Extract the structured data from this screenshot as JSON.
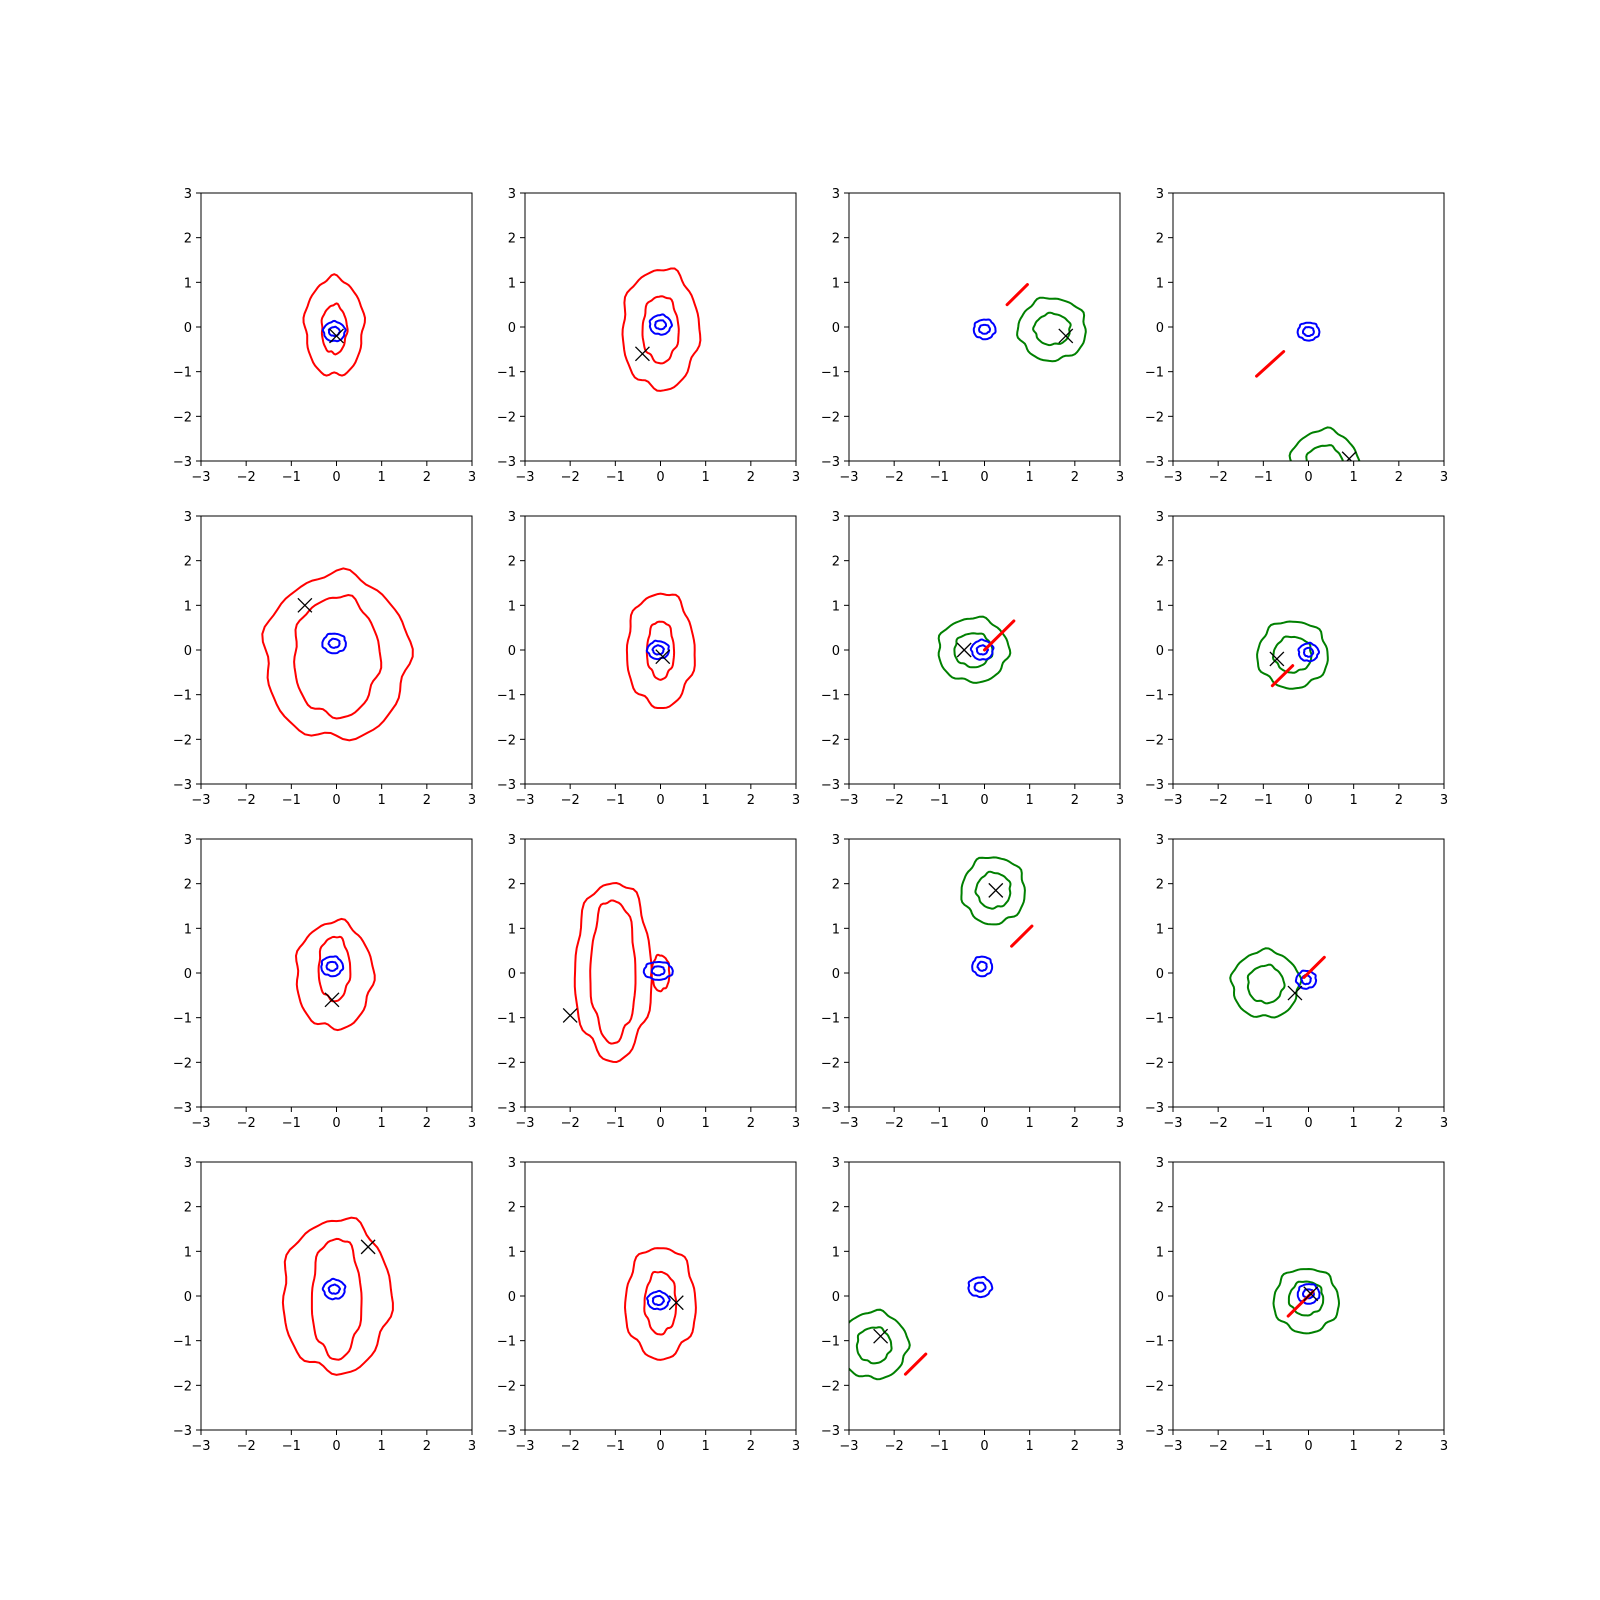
{
  "colors": {
    "background": "#ffffff",
    "axes": "#000000",
    "prior_contour": "#0000ff",
    "posterior_contour": "#ff0000",
    "extra_contour": "#008000",
    "marker": "#000000"
  },
  "chart_data": [
    {
      "type": "contour",
      "xlim": [
        -3,
        3
      ],
      "ylim": [
        -3,
        3
      ],
      "xticks": [
        -3,
        -2,
        -1,
        0,
        1,
        2,
        3
      ],
      "yticks": [
        -3,
        -2,
        -1,
        0,
        1,
        2,
        3
      ],
      "grid": false,
      "blue": {
        "cx": -0.05,
        "cy": -0.1,
        "levels": [
          {
            "rx": 0.24,
            "ry": 0.22
          },
          {
            "rx": 0.12,
            "ry": 0.1
          }
        ]
      },
      "red": [
        {
          "cx": -0.05,
          "cy": 0.0,
          "rx": 0.65,
          "ry": 1.1
        },
        {
          "cx": -0.05,
          "cy": -0.05,
          "rx": 0.28,
          "ry": 0.55
        }
      ],
      "green": [],
      "line": null,
      "marker": {
        "x": 0.0,
        "y": -0.2
      }
    },
    {
      "type": "contour",
      "xlim": [
        -3,
        3
      ],
      "ylim": [
        -3,
        3
      ],
      "xticks": [
        -3,
        -2,
        -1,
        0,
        1,
        2,
        3
      ],
      "yticks": [
        -3,
        -2,
        -1,
        0,
        1,
        2,
        3
      ],
      "grid": false,
      "blue": {
        "cx": 0.0,
        "cy": 0.05,
        "levels": [
          {
            "rx": 0.24,
            "ry": 0.22
          },
          {
            "rx": 0.12,
            "ry": 0.1
          }
        ]
      },
      "red": [
        {
          "cx": 0.0,
          "cy": -0.05,
          "rx": 0.85,
          "ry": 1.35
        },
        {
          "cx": 0.0,
          "cy": -0.05,
          "rx": 0.4,
          "ry": 0.75
        }
      ],
      "green": [],
      "line": null,
      "marker": {
        "x": -0.4,
        "y": -0.6
      }
    },
    {
      "type": "contour",
      "xlim": [
        -3,
        3
      ],
      "ylim": [
        -3,
        3
      ],
      "xticks": [
        -3,
        -2,
        -1,
        0,
        1,
        2,
        3
      ],
      "yticks": [
        -3,
        -2,
        -1,
        0,
        1,
        2,
        3
      ],
      "grid": false,
      "blue": {
        "cx": 0.0,
        "cy": -0.05,
        "levels": [
          {
            "rx": 0.24,
            "ry": 0.22
          },
          {
            "rx": 0.12,
            "ry": 0.1
          }
        ]
      },
      "red": [],
      "green": [
        {
          "cx": 1.5,
          "cy": -0.05,
          "rx": 0.75,
          "ry": 0.7
        },
        {
          "cx": 1.5,
          "cy": -0.05,
          "rx": 0.4,
          "ry": 0.35
        }
      ],
      "line": {
        "x1": 0.5,
        "y1": 0.5,
        "x2": 0.95,
        "y2": 0.95
      },
      "marker": {
        "x": 1.8,
        "y": -0.2
      }
    },
    {
      "type": "contour",
      "xlim": [
        -3,
        3
      ],
      "ylim": [
        -3,
        3
      ],
      "xticks": [
        -3,
        -2,
        -1,
        0,
        1,
        2,
        3
      ],
      "yticks": [
        -3,
        -2,
        -1,
        0,
        1,
        2,
        3
      ],
      "grid": false,
      "blue": {
        "cx": 0.0,
        "cy": -0.1,
        "levels": [
          {
            "rx": 0.24,
            "ry": 0.2
          },
          {
            "rx": 0.12,
            "ry": 0.1
          }
        ]
      },
      "red": [],
      "green": [
        {
          "cx": 0.35,
          "cy": -3.1,
          "rx": 0.75,
          "ry": 0.8
        },
        {
          "cx": 0.35,
          "cy": -3.1,
          "rx": 0.42,
          "ry": 0.45
        }
      ],
      "line": {
        "x1": -1.15,
        "y1": -1.1,
        "x2": -0.55,
        "y2": -0.55
      },
      "marker": {
        "x": 0.9,
        "y": -2.95
      }
    },
    {
      "type": "contour",
      "xlim": [
        -3,
        3
      ],
      "ylim": [
        -3,
        3
      ],
      "xticks": [
        -3,
        -2,
        -1,
        0,
        1,
        2,
        3
      ],
      "yticks": [
        -3,
        -2,
        -1,
        0,
        1,
        2,
        3
      ],
      "grid": false,
      "blue": {
        "cx": -0.05,
        "cy": 0.15,
        "levels": [
          {
            "rx": 0.26,
            "ry": 0.22
          },
          {
            "rx": 0.12,
            "ry": 0.1
          }
        ]
      },
      "red": [
        {
          "cx": 0.0,
          "cy": -0.15,
          "rx": 1.6,
          "ry": 1.85
        },
        {
          "cx": 0.0,
          "cy": -0.15,
          "rx": 0.95,
          "ry": 1.35
        }
      ],
      "green": [],
      "line": null,
      "marker": {
        "x": -0.7,
        "y": 1.0
      }
    },
    {
      "type": "contour",
      "xlim": [
        -3,
        3
      ],
      "ylim": [
        -3,
        3
      ],
      "xticks": [
        -3,
        -2,
        -1,
        0,
        1,
        2,
        3
      ],
      "yticks": [
        -3,
        -2,
        -1,
        0,
        1,
        2,
        3
      ],
      "grid": false,
      "blue": {
        "cx": -0.05,
        "cy": 0.0,
        "levels": [
          {
            "rx": 0.24,
            "ry": 0.2
          },
          {
            "rx": 0.12,
            "ry": 0.1
          }
        ]
      },
      "red": [
        {
          "cx": 0.0,
          "cy": 0.0,
          "rx": 0.75,
          "ry": 1.28
        },
        {
          "cx": 0.0,
          "cy": 0.0,
          "rx": 0.3,
          "ry": 0.65
        }
      ],
      "green": [],
      "line": null,
      "marker": {
        "x": 0.05,
        "y": -0.15
      }
    },
    {
      "type": "contour",
      "xlim": [
        -3,
        3
      ],
      "ylim": [
        -3,
        3
      ],
      "xticks": [
        -3,
        -2,
        -1,
        0,
        1,
        2,
        3
      ],
      "yticks": [
        -3,
        -2,
        -1,
        0,
        1,
        2,
        3
      ],
      "grid": false,
      "blue": {
        "cx": -0.05,
        "cy": 0.0,
        "levels": [
          {
            "rx": 0.24,
            "ry": 0.22
          },
          {
            "rx": 0.12,
            "ry": 0.1
          }
        ]
      },
      "red": [],
      "green": [
        {
          "cx": -0.25,
          "cy": 0.0,
          "rx": 0.78,
          "ry": 0.72
        },
        {
          "cx": -0.25,
          "cy": 0.0,
          "rx": 0.42,
          "ry": 0.38
        }
      ],
      "line": {
        "x1": 0.0,
        "y1": 0.0,
        "x2": 0.65,
        "y2": 0.65
      },
      "marker": {
        "x": -0.45,
        "y": 0.0
      }
    },
    {
      "type": "contour",
      "xlim": [
        -3,
        3
      ],
      "ylim": [
        -3,
        3
      ],
      "xticks": [
        -3,
        -2,
        -1,
        0,
        1,
        2,
        3
      ],
      "yticks": [
        -3,
        -2,
        -1,
        0,
        1,
        2,
        3
      ],
      "grid": false,
      "blue": {
        "cx": 0.0,
        "cy": -0.05,
        "levels": [
          {
            "rx": 0.22,
            "ry": 0.2
          },
          {
            "rx": 0.1,
            "ry": 0.1
          }
        ]
      },
      "red": [],
      "green": [
        {
          "cx": -0.35,
          "cy": -0.1,
          "rx": 0.78,
          "ry": 0.75
        },
        {
          "cx": -0.35,
          "cy": -0.1,
          "rx": 0.42,
          "ry": 0.4
        }
      ],
      "line": {
        "x1": -0.8,
        "y1": -0.8,
        "x2": -0.35,
        "y2": -0.35
      },
      "marker": {
        "x": -0.7,
        "y": -0.2
      }
    },
    {
      "type": "contour",
      "xlim": [
        -3,
        3
      ],
      "ylim": [
        -3,
        3
      ],
      "xticks": [
        -3,
        -2,
        -1,
        0,
        1,
        2,
        3
      ],
      "yticks": [
        -3,
        -2,
        -1,
        0,
        1,
        2,
        3
      ],
      "grid": false,
      "blue": {
        "cx": -0.1,
        "cy": 0.15,
        "levels": [
          {
            "rx": 0.24,
            "ry": 0.22
          },
          {
            "rx": 0.12,
            "ry": 0.1
          }
        ]
      },
      "red": [
        {
          "cx": -0.05,
          "cy": -0.05,
          "rx": 0.85,
          "ry": 1.2
        },
        {
          "cx": -0.05,
          "cy": 0.1,
          "rx": 0.35,
          "ry": 0.72
        }
      ],
      "green": [],
      "line": null,
      "marker": {
        "x": -0.1,
        "y": -0.6
      }
    },
    {
      "type": "contour",
      "xlim": [
        -3,
        3
      ],
      "ylim": [
        -3,
        3
      ],
      "xticks": [
        -3,
        -2,
        -1,
        0,
        1,
        2,
        3
      ],
      "yticks": [
        -3,
        -2,
        -1,
        0,
        1,
        2,
        3
      ],
      "grid": false,
      "blue": {
        "cx": -0.05,
        "cy": 0.05,
        "levels": [
          {
            "rx": 0.32,
            "ry": 0.2
          },
          {
            "rx": 0.14,
            "ry": 0.1
          }
        ]
      },
      "red": [
        {
          "cx": -1.05,
          "cy": 0.05,
          "rx": 0.85,
          "ry": 2.0
        },
        {
          "cx": -1.05,
          "cy": 0.05,
          "rx": 0.5,
          "ry": 1.6
        },
        {
          "cx": 0.0,
          "cy": 0.0,
          "rx": 0.2,
          "ry": 0.4
        }
      ],
      "green": [],
      "line": null,
      "marker": {
        "x": -2.0,
        "y": -0.95
      }
    },
    {
      "type": "contour",
      "xlim": [
        -3,
        3
      ],
      "ylim": [
        -3,
        3
      ],
      "xticks": [
        -3,
        -2,
        -1,
        0,
        1,
        2,
        3
      ],
      "yticks": [
        -3,
        -2,
        -1,
        0,
        1,
        2,
        3
      ],
      "grid": false,
      "blue": {
        "cx": -0.05,
        "cy": 0.15,
        "levels": [
          {
            "rx": 0.22,
            "ry": 0.22
          },
          {
            "rx": 0.1,
            "ry": 0.1
          }
        ]
      },
      "red": [],
      "green": [
        {
          "cx": 0.2,
          "cy": 1.85,
          "rx": 0.7,
          "ry": 0.75
        },
        {
          "cx": 0.2,
          "cy": 1.85,
          "rx": 0.38,
          "ry": 0.4
        }
      ],
      "line": {
        "x1": 0.6,
        "y1": 0.6,
        "x2": 1.05,
        "y2": 1.05
      },
      "marker": {
        "x": 0.25,
        "y": 1.85
      }
    },
    {
      "type": "contour",
      "xlim": [
        -3,
        3
      ],
      "ylim": [
        -3,
        3
      ],
      "xticks": [
        -3,
        -2,
        -1,
        0,
        1,
        2,
        3
      ],
      "yticks": [
        -3,
        -2,
        -1,
        0,
        1,
        2,
        3
      ],
      "grid": false,
      "blue": {
        "cx": -0.05,
        "cy": -0.15,
        "levels": [
          {
            "rx": 0.22,
            "ry": 0.2
          },
          {
            "rx": 0.1,
            "ry": 0.1
          }
        ]
      },
      "red": [],
      "green": [
        {
          "cx": -0.95,
          "cy": -0.25,
          "rx": 0.75,
          "ry": 0.75
        },
        {
          "cx": -0.95,
          "cy": -0.25,
          "rx": 0.4,
          "ry": 0.42
        }
      ],
      "line": {
        "x1": -0.1,
        "y1": -0.1,
        "x2": 0.35,
        "y2": 0.35
      },
      "marker": {
        "x": -0.3,
        "y": -0.45
      }
    },
    {
      "type": "contour",
      "xlim": [
        -3,
        3
      ],
      "ylim": [
        -3,
        3
      ],
      "xticks": [
        -3,
        -2,
        -1,
        0,
        1,
        2,
        3
      ],
      "yticks": [
        -3,
        -2,
        -1,
        0,
        1,
        2,
        3
      ],
      "grid": false,
      "blue": {
        "cx": -0.05,
        "cy": 0.15,
        "levels": [
          {
            "rx": 0.24,
            "ry": 0.22
          },
          {
            "rx": 0.12,
            "ry": 0.1
          }
        ]
      },
      "red": [
        {
          "cx": 0.0,
          "cy": 0.0,
          "rx": 1.2,
          "ry": 1.72
        },
        {
          "cx": 0.0,
          "cy": -0.05,
          "rx": 0.55,
          "ry": 1.35
        }
      ],
      "green": [],
      "line": null,
      "marker": {
        "x": 0.7,
        "y": 1.1
      }
    },
    {
      "type": "contour",
      "xlim": [
        -3,
        3
      ],
      "ylim": [
        -3,
        3
      ],
      "xticks": [
        -3,
        -2,
        -1,
        0,
        1,
        2,
        3
      ],
      "yticks": [
        -3,
        -2,
        -1,
        0,
        1,
        2,
        3
      ],
      "grid": false,
      "blue": {
        "cx": -0.05,
        "cy": -0.1,
        "levels": [
          {
            "rx": 0.24,
            "ry": 0.2
          },
          {
            "rx": 0.12,
            "ry": 0.1
          }
        ]
      },
      "red": [
        {
          "cx": 0.0,
          "cy": -0.15,
          "rx": 0.78,
          "ry": 1.25
        },
        {
          "cx": 0.0,
          "cy": -0.15,
          "rx": 0.35,
          "ry": 0.7
        }
      ],
      "green": [],
      "line": null,
      "marker": {
        "x": 0.35,
        "y": -0.15
      }
    },
    {
      "type": "contour",
      "xlim": [
        -3,
        3
      ],
      "ylim": [
        -3,
        3
      ],
      "xticks": [
        -3,
        -2,
        -1,
        0,
        1,
        2,
        3
      ],
      "yticks": [
        -3,
        -2,
        -1,
        0,
        1,
        2,
        3
      ],
      "grid": false,
      "blue": {
        "cx": -0.1,
        "cy": 0.2,
        "levels": [
          {
            "rx": 0.26,
            "ry": 0.22
          },
          {
            "rx": 0.12,
            "ry": 0.1
          }
        ]
      },
      "red": [],
      "green": [
        {
          "cx": -2.45,
          "cy": -1.1,
          "rx": 0.75,
          "ry": 0.75
        },
        {
          "cx": -2.45,
          "cy": -1.1,
          "rx": 0.38,
          "ry": 0.4
        }
      ],
      "line": {
        "x1": -1.75,
        "y1": -1.75,
        "x2": -1.3,
        "y2": -1.3
      },
      "marker": {
        "x": -2.3,
        "y": -0.9
      }
    },
    {
      "type": "contour",
      "xlim": [
        -3,
        3
      ],
      "ylim": [
        -3,
        3
      ],
      "xticks": [
        -3,
        -2,
        -1,
        0,
        1,
        2,
        3
      ],
      "yticks": [
        -3,
        -2,
        -1,
        0,
        1,
        2,
        3
      ],
      "grid": false,
      "blue": {
        "cx": 0.0,
        "cy": 0.05,
        "levels": [
          {
            "rx": 0.24,
            "ry": 0.22
          },
          {
            "rx": 0.12,
            "ry": 0.1
          }
        ]
      },
      "red": [],
      "green": [
        {
          "cx": -0.05,
          "cy": -0.1,
          "rx": 0.72,
          "ry": 0.72
        },
        {
          "cx": -0.05,
          "cy": -0.05,
          "rx": 0.38,
          "ry": 0.38
        }
      ],
      "line": {
        "x1": -0.45,
        "y1": -0.45,
        "x2": 0.1,
        "y2": 0.1
      },
      "marker": {
        "x": 0.05,
        "y": 0.05
      }
    }
  ]
}
